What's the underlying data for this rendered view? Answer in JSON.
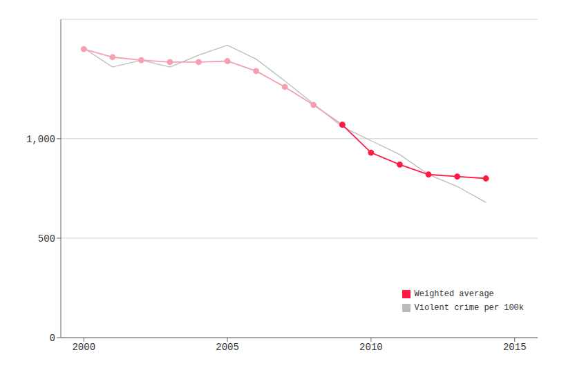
{
  "chart_data": {
    "type": "line",
    "x": [
      2000,
      2001,
      2002,
      2003,
      2004,
      2005,
      2006,
      2007,
      2008,
      2009,
      2010,
      2011,
      2012,
      2013,
      2014
    ],
    "series": [
      {
        "name": "Weighted average",
        "color": "#ff1a44",
        "colors": [
          "#f4a0b0",
          "#f4a0b0",
          "#f4a0b0",
          "#f4a0b0",
          "#f4a0b0",
          "#f4a0b0",
          "#f4a0b0",
          "#f4a0b0",
          "#f4a0b0",
          "#ff1a44",
          "#ff1a44",
          "#ff1a44",
          "#ff1a44",
          "#ff1a44",
          "#ff1a44"
        ],
        "marker": "circle",
        "values": [
          1450,
          1410,
          1395,
          1385,
          1385,
          1390,
          1340,
          1260,
          1170,
          1070,
          930,
          870,
          820,
          810,
          800
        ]
      },
      {
        "name": "Violent crime per 100k",
        "color": "#bbbbbb",
        "marker": "none",
        "values": [
          1455,
          1360,
          1395,
          1360,
          1420,
          1470,
          1400,
          1290,
          1175,
          1060,
          990,
          920,
          820,
          760,
          680
        ]
      }
    ],
    "xlim": [
      1999.2,
      2015.8
    ],
    "ylim": [
      0,
      1600
    ],
    "xticks": [
      2000,
      2005,
      2010,
      2015
    ],
    "yticks": [
      0,
      500,
      {
        "value": 1000,
        "label": "1,000"
      }
    ],
    "grid": true,
    "legend": "lower right"
  }
}
